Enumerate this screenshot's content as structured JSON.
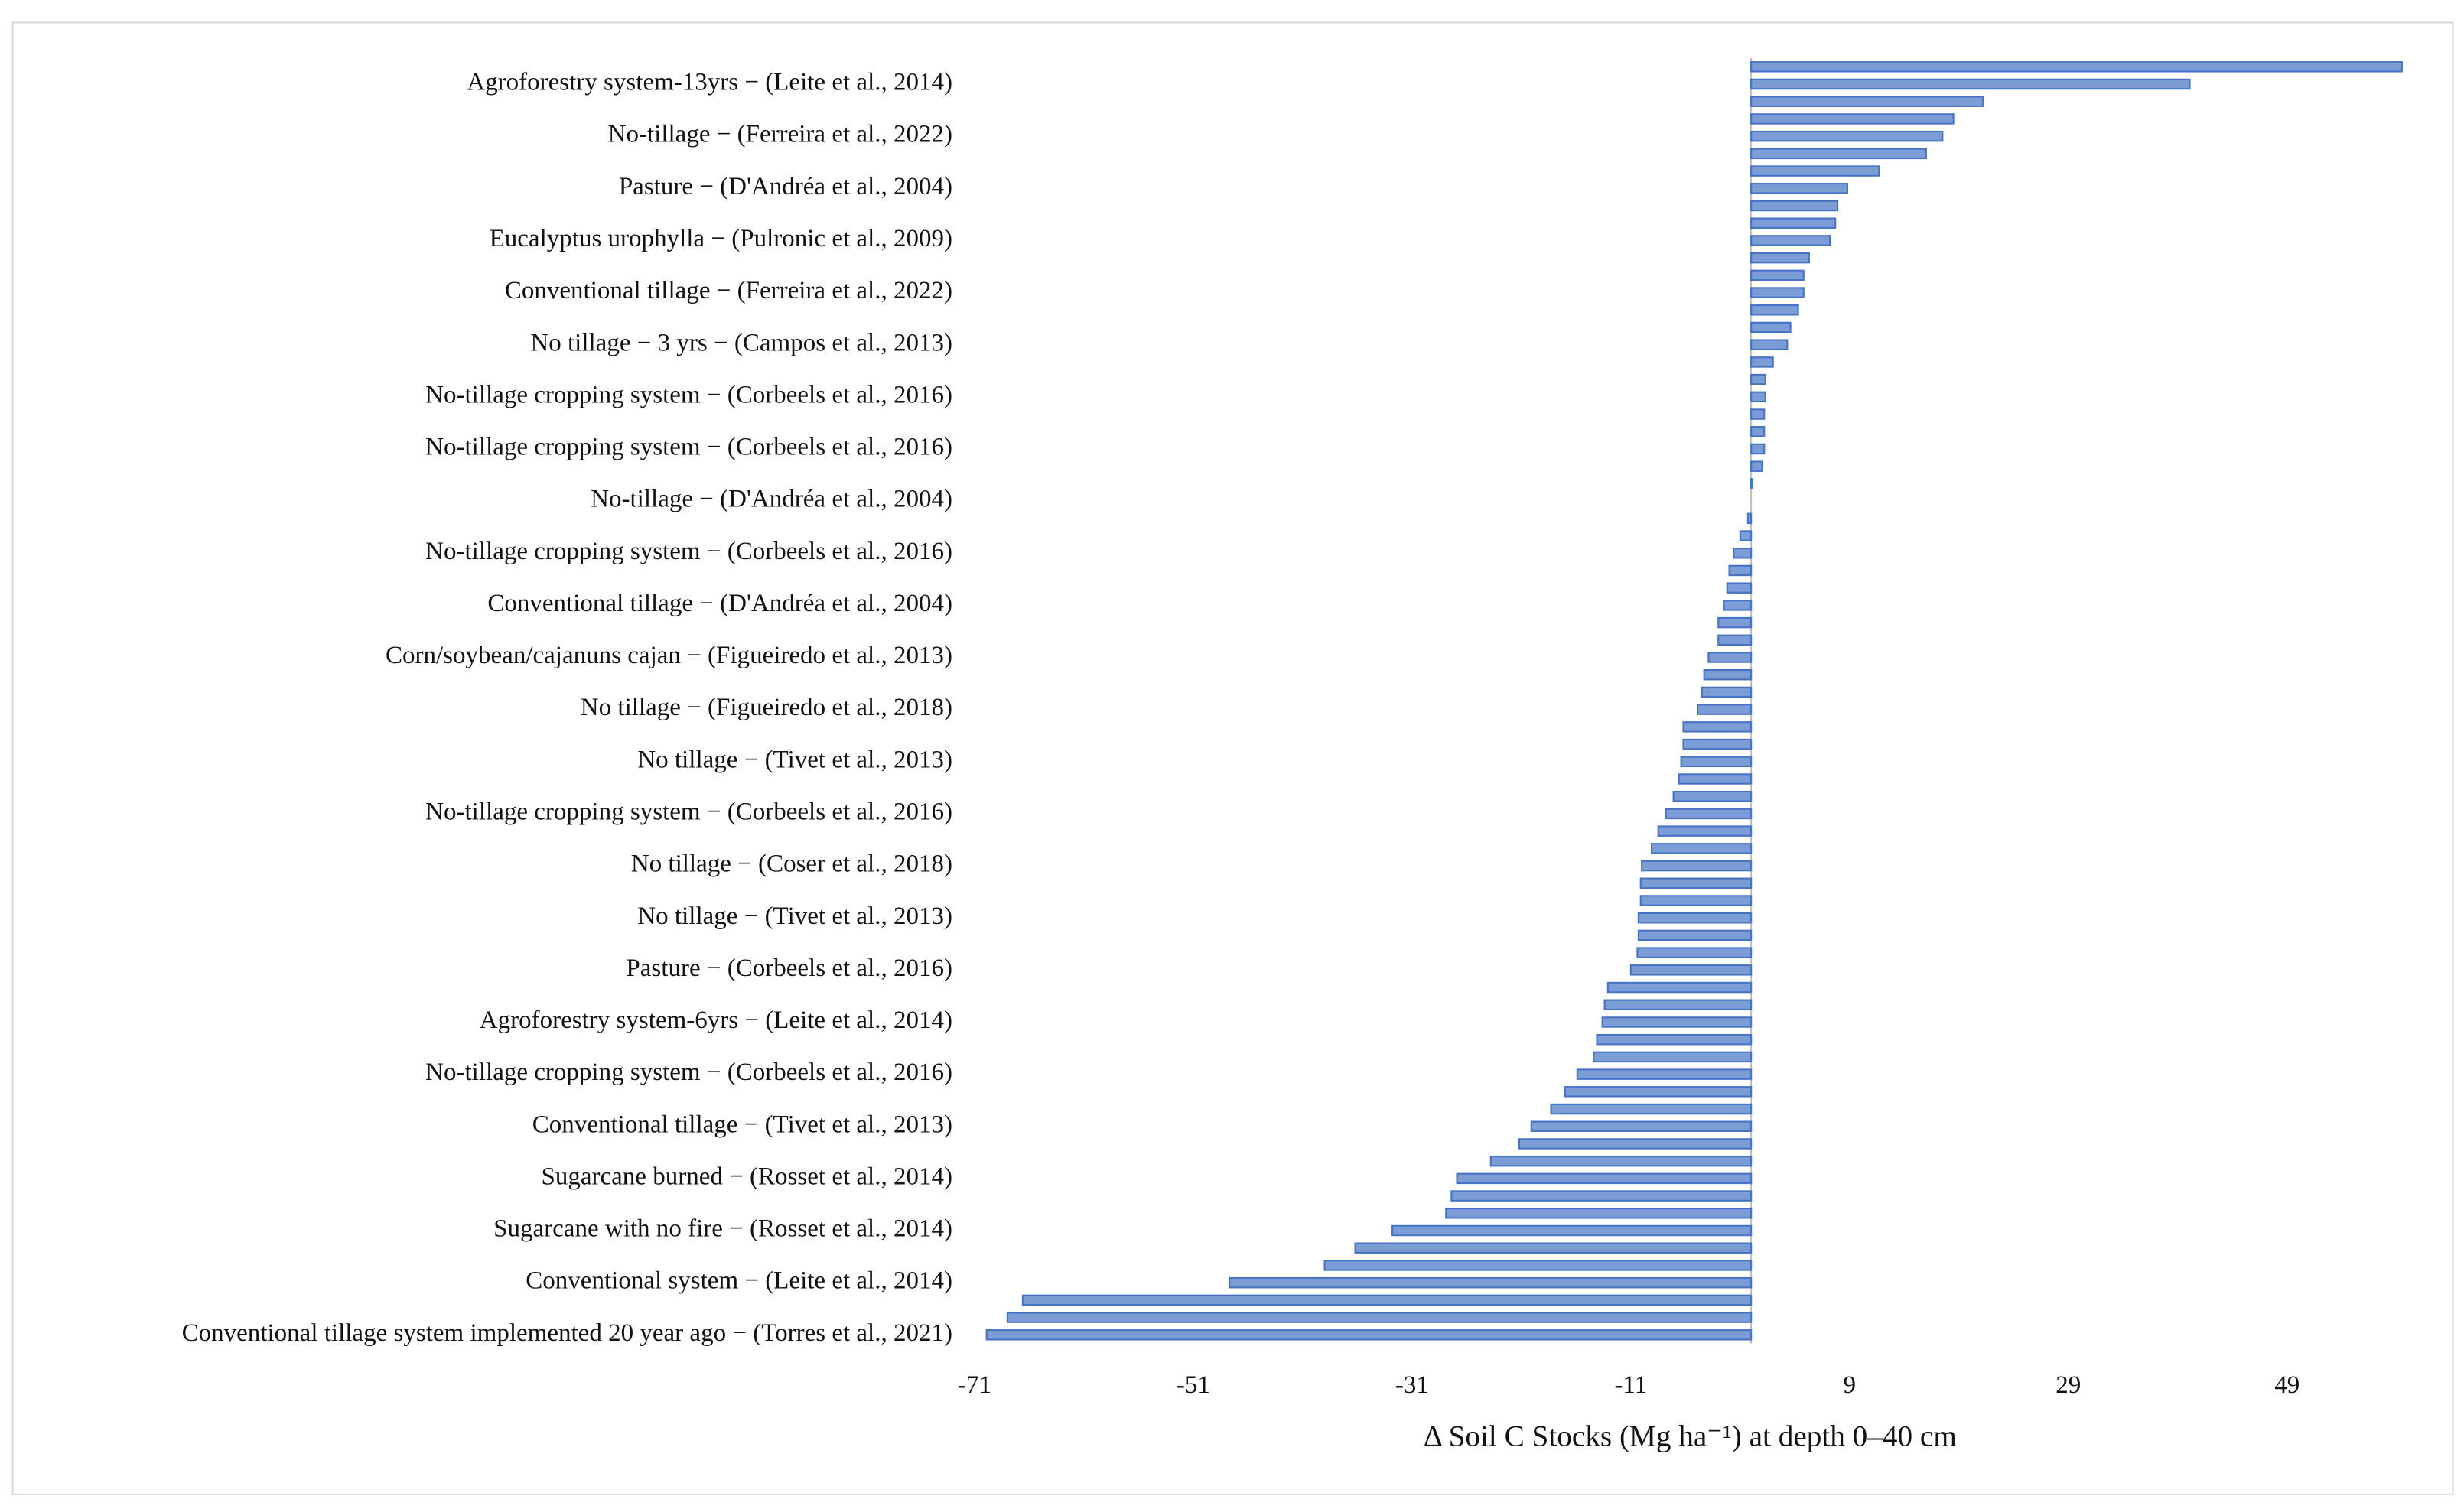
{
  "chart_data": {
    "type": "barh",
    "xlabel": "Δ Soil C Stocks (Mg ha⁻¹) at depth 0–40 cm",
    "categories": [
      null,
      "Agroforestry system-13yrs − (Leite et al., 2014)",
      null,
      null,
      "No-tillage − (Ferreira et al., 2022)",
      null,
      null,
      "Pasture − (D'Andréa et al., 2004)",
      null,
      null,
      "Eucalyptus urophylla − (Pulronic et al., 2009)",
      null,
      null,
      "Conventional tillage − (Ferreira et al., 2022)",
      null,
      null,
      "No tillage − 3 yrs − (Campos et al., 2013)",
      null,
      null,
      "No-tillage cropping system − (Corbeels et al., 2016)",
      null,
      null,
      "No-tillage cropping system − (Corbeels et al., 2016)",
      null,
      null,
      "No-tillage − (D'Andréa et al., 2004)",
      null,
      null,
      "No-tillage cropping system − (Corbeels et al., 2016)",
      null,
      null,
      "Conventional tillage − (D'Andréa et al., 2004)",
      null,
      null,
      "Corn/soybean/cajanuns cajan − (Figueiredo et al., 2013)",
      null,
      null,
      "No tillage − (Figueiredo et al., 2018)",
      null,
      null,
      "No tillage − (Tivet et al., 2013)",
      null,
      null,
      "No-tillage cropping system − (Corbeels et al., 2016)",
      null,
      null,
      "No tillage − (Coser et al., 2018)",
      null,
      null,
      "No tillage − (Tivet et al., 2013)",
      null,
      null,
      "Pasture − (Corbeels et al., 2016)",
      null,
      null,
      "Agroforestry system-6yrs − (Leite et al., 2014)",
      null,
      null,
      "No-tillage cropping system − (Corbeels et al., 2016)",
      null,
      null,
      "Conventional tillage − (Tivet et al., 2013)",
      null,
      null,
      "Sugarcane burned − (Rosset et al., 2014)",
      null,
      null,
      "Sugarcane with no fire − (Rosset et al., 2014)",
      null,
      null,
      "Conventional system − (Leite et al., 2014)",
      null,
      null,
      "Conventional tillage system implemented 20 year ago − (Torres et al., 2021)"
    ],
    "values": [
      59.5,
      40.1,
      21.2,
      18.5,
      17.5,
      16.0,
      11.7,
      8.8,
      7.9,
      7.7,
      7.2,
      5.3,
      4.8,
      4.8,
      4.3,
      3.6,
      3.3,
      2.0,
      1.3,
      1.3,
      1.2,
      1.2,
      1.2,
      1.0,
      0.1,
      0,
      -0.3,
      -1.0,
      -1.6,
      -2.0,
      -2.2,
      -2.5,
      -3.0,
      -3.0,
      -3.9,
      -4.3,
      -4.5,
      -4.9,
      -6.2,
      -6.2,
      -6.4,
      -6.6,
      -7.1,
      -7.8,
      -8.5,
      -9.1,
      -10.0,
      -10.1,
      -10.1,
      -10.3,
      -10.3,
      -10.4,
      -11.0,
      -13.1,
      -13.4,
      -13.6,
      -14.1,
      -14.4,
      -15.9,
      -17.0,
      -18.3,
      -20.1,
      -21.2,
      -23.8,
      -26.9,
      -27.4,
      -27.9,
      -32.8,
      -36.2,
      -39.0,
      -47.7,
      -66.6,
      -68.0,
      -69.9
    ],
    "color": "#4472c4",
    "xlim": [
      -71,
      60
    ],
    "xticks": [
      -71,
      -51,
      -31,
      -11,
      9,
      29,
      49
    ],
    "grid": false
  }
}
